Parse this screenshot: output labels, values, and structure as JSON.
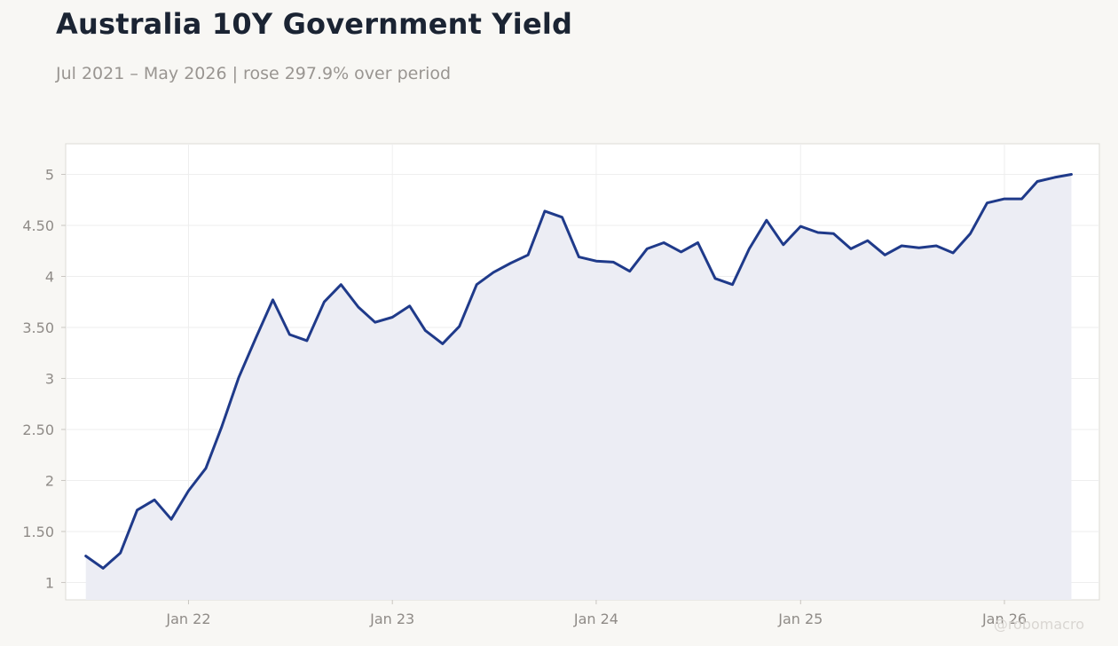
{
  "title": "Australia 10Y Government Yield",
  "subtitle": "Jul 2021 – May 2026 | rose 297.9% over period",
  "watermark": "@robomacro",
  "colors": {
    "line": "#1f3a8a",
    "fill": "#ecedf4",
    "plot_background": "#ffffff",
    "page_background": "#f8f7f4",
    "grid": "#eeeeee",
    "tick_text": "#8f8b87"
  },
  "chart_data": {
    "type": "area",
    "title": "Australia 10Y Government Yield",
    "xlabel": "",
    "ylabel": "",
    "ylim": [
      0.83,
      5.3
    ],
    "xlim": [
      "2021-05-26",
      "2026-06-20"
    ],
    "grid": true,
    "legend": "none",
    "y_ticks": [
      1,
      1.5,
      2,
      2.5,
      3,
      3.5,
      4,
      4.5,
      5
    ],
    "y_tick_labels": [
      "1",
      "1.50",
      "2",
      "2.50",
      "3",
      "3.50",
      "4",
      "4.50",
      "5"
    ],
    "x_ticks": [
      "2022-01-01",
      "2023-01-01",
      "2024-01-01",
      "2025-01-01",
      "2026-01-01"
    ],
    "x_tick_labels": [
      "Jan 22",
      "Jan 23",
      "Jan 24",
      "Jan 25",
      "Jan 26"
    ],
    "series": [
      {
        "x": [
          "2021-07-01",
          "2021-08-01",
          "2021-09-01",
          "2021-10-01",
          "2021-11-01",
          "2021-12-01",
          "2022-01-01",
          "2022-02-01",
          "2022-03-01",
          "2022-04-01",
          "2022-05-01",
          "2022-06-01",
          "2022-07-01",
          "2022-08-01",
          "2022-09-01",
          "2022-10-01",
          "2022-11-01",
          "2022-12-01",
          "2023-01-01",
          "2023-02-01",
          "2023-03-01",
          "2023-04-01",
          "2023-05-01",
          "2023-06-01",
          "2023-07-01",
          "2023-08-01",
          "2023-09-01",
          "2023-10-01",
          "2023-11-01",
          "2023-12-01",
          "2024-01-01",
          "2024-02-01",
          "2024-03-01",
          "2024-04-01",
          "2024-05-01",
          "2024-06-01",
          "2024-07-01",
          "2024-08-01",
          "2024-09-01",
          "2024-10-01",
          "2024-11-01",
          "2024-12-01",
          "2025-01-01",
          "2025-02-01",
          "2025-03-01",
          "2025-04-01",
          "2025-05-01",
          "2025-06-01",
          "2025-07-01",
          "2025-08-01",
          "2025-09-01",
          "2025-10-01",
          "2025-11-01",
          "2025-12-01",
          "2026-01-01",
          "2026-02-01",
          "2026-03-01",
          "2026-04-01",
          "2026-05-01"
        ],
        "values": [
          1.26,
          1.14,
          1.29,
          1.71,
          1.81,
          1.62,
          1.9,
          2.12,
          2.52,
          3.01,
          3.39,
          3.77,
          3.43,
          3.37,
          3.75,
          3.92,
          3.7,
          3.55,
          3.6,
          3.71,
          3.47,
          3.34,
          3.51,
          3.92,
          4.04,
          4.13,
          4.21,
          4.64,
          4.58,
          4.19,
          4.15,
          4.14,
          4.05,
          4.27,
          4.33,
          4.24,
          4.33,
          3.98,
          3.92,
          4.27,
          4.55,
          4.31,
          4.49,
          4.43,
          4.42,
          4.27,
          4.35,
          4.21,
          4.3,
          4.28,
          4.3,
          4.23,
          4.42,
          4.72,
          4.76,
          4.76,
          4.93,
          4.97,
          5.0
        ]
      }
    ]
  }
}
